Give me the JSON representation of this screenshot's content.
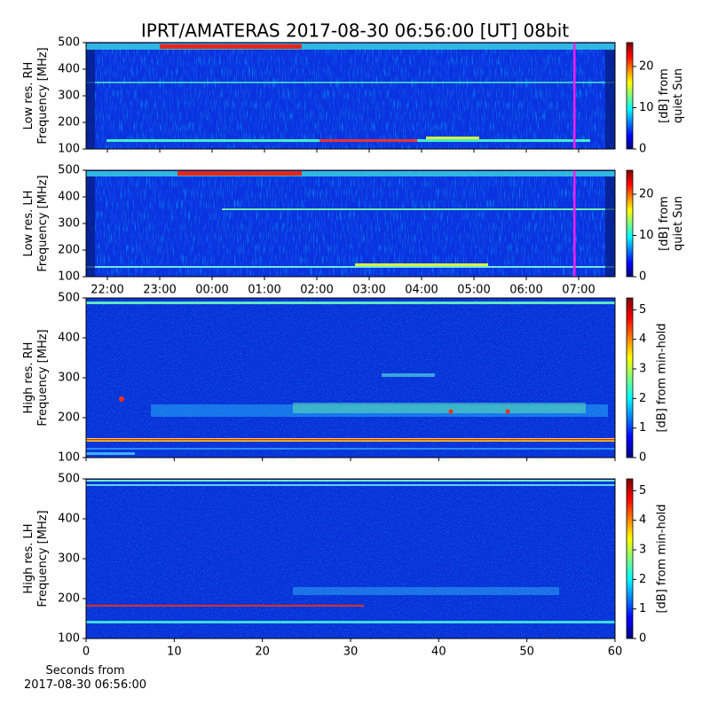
{
  "title": "IPRT/AMATERAS 2017-08-30 06:56:00 [UT]   08bit",
  "xlabel": "Seconds from\n2017-08-30 06:56:00",
  "chart_data": [
    {
      "type": "heatmap",
      "ylabel": "Low res. RH\nFrequency [MHz]",
      "ylim": [
        100,
        500
      ],
      "yticks": [
        100,
        200,
        300,
        400,
        500
      ],
      "xlim": [
        21.593,
        31.695
      ],
      "colormap": "jet",
      "colorbar": {
        "label": "[dB] from\nquiet Sun",
        "lim": [
          0,
          25.8
        ],
        "ticks": [
          0,
          10,
          20
        ]
      }
    },
    {
      "type": "heatmap",
      "ylabel": "Low res. LH\nFrequency [MHz]",
      "ylim": [
        100,
        500
      ],
      "yticks": [
        100,
        200,
        300,
        400,
        500
      ],
      "xlim": [
        21.593,
        31.695
      ],
      "colormap": "jet",
      "xticks": [
        {
          "value": 22,
          "label": "22:00"
        },
        {
          "value": 23,
          "label": "23:00"
        },
        {
          "value": 24,
          "label": "00:00"
        },
        {
          "value": 25,
          "label": "01:00"
        },
        {
          "value": 26,
          "label": "02:00"
        },
        {
          "value": 27,
          "label": "03:00"
        },
        {
          "value": 28,
          "label": "04:00"
        },
        {
          "value": 29,
          "label": "05:00"
        },
        {
          "value": 30,
          "label": "06:00"
        },
        {
          "value": 31,
          "label": "07:00"
        }
      ],
      "colorbar": {
        "label": "[dB] from\nquiet Sun",
        "lim": [
          0,
          25.8
        ],
        "ticks": [
          0,
          10,
          20
        ]
      }
    },
    {
      "type": "heatmap",
      "ylabel": "High res. RH\nFrequency [MHz]",
      "ylim": [
        100,
        500
      ],
      "yticks": [
        100,
        200,
        300,
        400,
        500
      ],
      "xlim": [
        0,
        60
      ],
      "colormap": "jet",
      "colorbar": {
        "label": "[dB] from min-hold",
        "lim": [
          0,
          5.4
        ],
        "ticks": [
          0,
          1,
          2,
          3,
          4,
          5
        ]
      }
    },
    {
      "type": "heatmap",
      "ylabel": "High res. LH\nFrequency [MHz]",
      "ylim": [
        100,
        500
      ],
      "yticks": [
        100,
        200,
        300,
        400,
        500
      ],
      "xlim": [
        0,
        60
      ],
      "colormap": "jet",
      "xticks": [
        0,
        10,
        20,
        30,
        40,
        50,
        60
      ],
      "colorbar": {
        "label": "[dB] from min-hold",
        "lim": [
          0,
          5.4
        ],
        "ticks": [
          0,
          1,
          2,
          3,
          4,
          5
        ]
      }
    }
  ]
}
